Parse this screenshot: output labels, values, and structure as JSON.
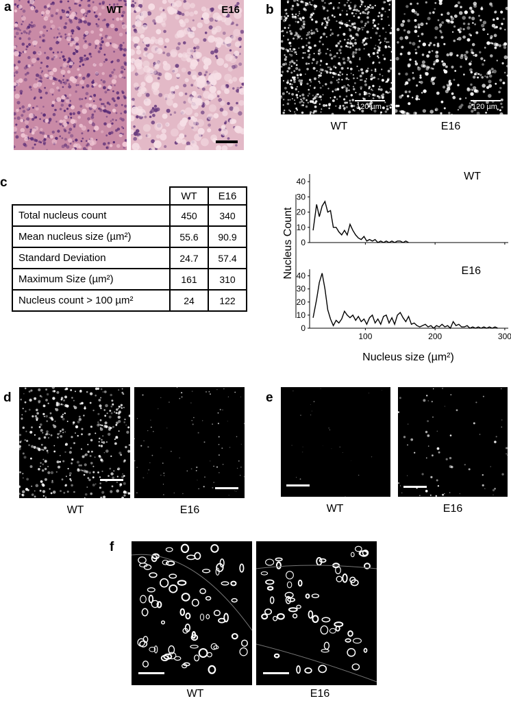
{
  "panel_a": {
    "label": "a",
    "left_label": "WT",
    "right_label": "E16"
  },
  "panel_b": {
    "label": "b",
    "scale_left": "120 µm",
    "scale_right": "120 µm",
    "cap_left": "WT",
    "cap_right": "E16"
  },
  "panel_c": {
    "label": "c",
    "table": {
      "headers": [
        "WT",
        "E16"
      ],
      "rows": [
        {
          "label": "Total nucleus count",
          "wt": "450",
          "e16": "340"
        },
        {
          "label": "Mean nucleus size (µm²)",
          "wt": "55.6",
          "e16": "90.9"
        },
        {
          "label": "Standard Deviation",
          "wt": "24.7",
          "e16": "57.4"
        },
        {
          "label": "Maximum Size (µm²)",
          "wt": "161",
          "e16": "310"
        },
        {
          "label": "Nucleus count > 100 µm²",
          "wt": "24",
          "e16": "122"
        }
      ]
    }
  },
  "chart_data": {
    "type": "line",
    "xlabel": "Nucleus size (µm²)",
    "ylabel": "Nucleus Count",
    "xlim": [
      20,
      305
    ],
    "ylim": [
      0,
      45
    ],
    "xticks": [
      100,
      200,
      300
    ],
    "yticks": [
      0,
      10,
      20,
      30,
      40
    ],
    "series": [
      {
        "name": "WT",
        "x": [
          25,
          30,
          34,
          38,
          42,
          46,
          50,
          54,
          58,
          62,
          66,
          70,
          74,
          78,
          82,
          86,
          90,
          94,
          98,
          102,
          106,
          110,
          114,
          118,
          122,
          126,
          130,
          134,
          138,
          142,
          146,
          150,
          154,
          158,
          162
        ],
        "y": [
          8,
          25,
          17,
          24,
          27,
          20,
          21,
          10,
          10,
          7,
          5,
          8,
          5,
          12,
          8,
          5,
          3,
          2,
          4,
          1,
          2,
          1,
          2,
          0,
          1,
          0,
          1,
          0,
          1,
          0,
          1,
          1,
          0,
          1,
          0
        ]
      },
      {
        "name": "E16",
        "x": [
          25,
          30,
          34,
          38,
          42,
          46,
          50,
          54,
          58,
          62,
          66,
          70,
          74,
          78,
          82,
          86,
          90,
          94,
          98,
          102,
          106,
          110,
          114,
          118,
          122,
          126,
          130,
          134,
          138,
          142,
          146,
          150,
          154,
          158,
          162,
          166,
          170,
          174,
          178,
          182,
          186,
          190,
          194,
          198,
          202,
          206,
          210,
          214,
          218,
          222,
          226,
          230,
          234,
          238,
          242,
          246,
          250,
          254,
          258,
          262,
          266,
          270,
          274,
          278,
          282,
          286,
          290
        ],
        "y": [
          8,
          22,
          35,
          42,
          30,
          14,
          7,
          2,
          6,
          4,
          7,
          13,
          10,
          8,
          10,
          6,
          9,
          5,
          7,
          3,
          8,
          10,
          4,
          7,
          3,
          9,
          10,
          4,
          8,
          3,
          10,
          12,
          8,
          5,
          9,
          3,
          4,
          2,
          1,
          2,
          3,
          1,
          2,
          0,
          2,
          1,
          3,
          1,
          2,
          0,
          5,
          2,
          3,
          1,
          1,
          2,
          0,
          1,
          0,
          1,
          0,
          1,
          0,
          1,
          0,
          1,
          0
        ]
      }
    ]
  },
  "panel_d": {
    "label": "d",
    "cap_left": "WT",
    "cap_right": "E16"
  },
  "panel_e": {
    "label": "e",
    "cap_left": "WT",
    "cap_right": "E16"
  },
  "panel_f": {
    "label": "f",
    "cap_left": "WT",
    "cap_right": "E16"
  }
}
